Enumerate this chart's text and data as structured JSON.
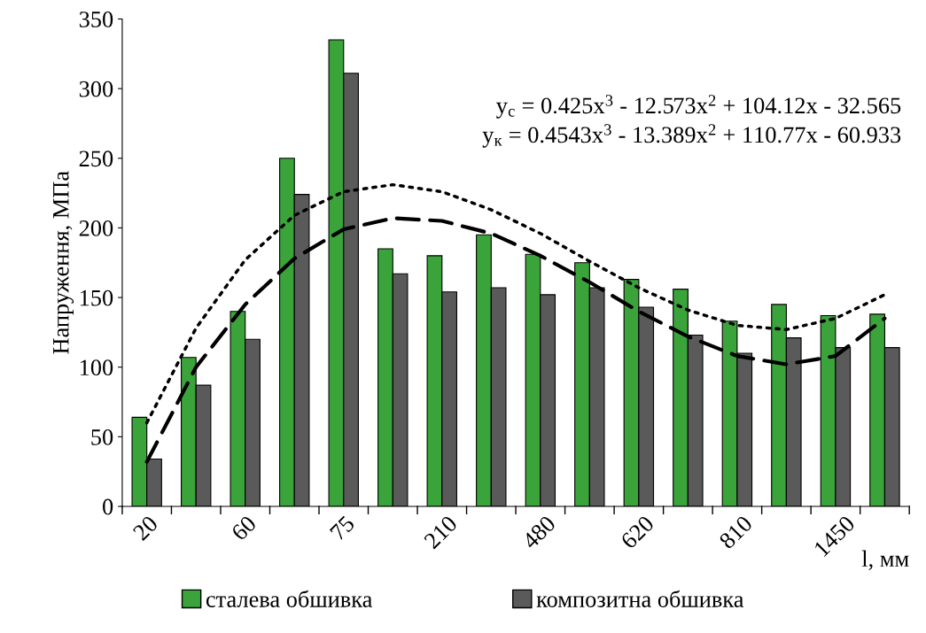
{
  "chart_data": {
    "type": "bar",
    "ylabel": "Напруження, МПа",
    "xlabel": "l, мм",
    "categories": [
      "20",
      null,
      "60",
      null,
      "75",
      null,
      "210",
      null,
      "480",
      null,
      "620",
      null,
      "810",
      null,
      "1450",
      null
    ],
    "series": [
      {
        "name": "сталева обшивка",
        "color": "#3aa33a",
        "values": [
          64,
          107,
          140,
          250,
          335,
          185,
          180,
          195,
          181,
          175,
          163,
          156,
          133,
          145,
          137,
          138
        ]
      },
      {
        "name": "композитна обшивка",
        "color": "#5a5a5a",
        "values": [
          34,
          87,
          120,
          224,
          311,
          167,
          154,
          157,
          152,
          157,
          143,
          123,
          110,
          121,
          114,
          114
        ]
      },
      {
        "type": "line",
        "line_style": "dotted",
        "color": "#000000",
        "values": [
          60,
          128,
          177,
          209,
          226,
          231,
          226,
          213,
          196,
          176,
          157,
          141,
          130,
          127,
          135,
          152
        ]
      },
      {
        "type": "line",
        "line_style": "dashed",
        "color": "#000000",
        "values": [
          32,
          100,
          145,
          178,
          199,
          207,
          205,
          196,
          180,
          161,
          140,
          122,
          108,
          102,
          108,
          135
        ]
      }
    ],
    "ylim": [
      0,
      350
    ],
    "yticks": [
      0,
      50,
      100,
      150,
      200,
      250,
      300,
      350
    ],
    "grid": false,
    "legend": "bottom",
    "annotations": [
      "y$_{с}$ = 0.425x$^{3}$ - 12.573x$^{2}$ + 104.12x - 32.565",
      "y$_{к}$ = 0.4543x$^{3}$ - 13.389x$^{2}$ + 110.77x - 60.933"
    ]
  }
}
